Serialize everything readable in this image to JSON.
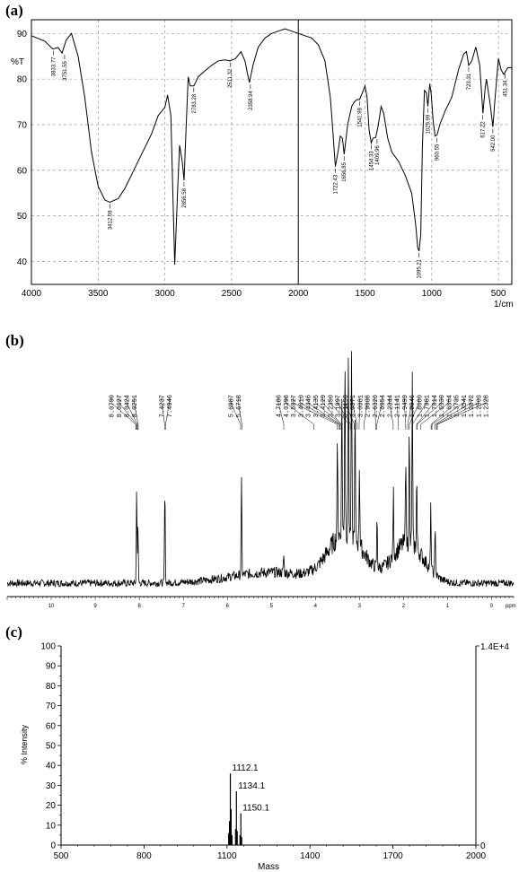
{
  "panels": {
    "a": {
      "label": "(a)"
    },
    "b": {
      "label": "(b)"
    },
    "c": {
      "label": "(c)"
    }
  },
  "chart_data": [
    {
      "type": "line",
      "panel": "a",
      "xlabel": "1/cm",
      "ylabel": "%T",
      "xlim": [
        4000,
        400
      ],
      "ylim": [
        35,
        93
      ],
      "x_ticks": [
        4000,
        3500,
        3000,
        2500,
        2000,
        1500,
        1000,
        500
      ],
      "y_ticks": [
        40,
        50,
        60,
        70,
        80,
        90
      ],
      "grid": true,
      "series": [
        {
          "points": [
            [
              4000,
              89.5
            ],
            [
              3900,
              88.3
            ],
            [
              3840,
              86.6
            ],
            [
              3800,
              86.9
            ],
            [
              3770,
              85.7
            ],
            [
              3740,
              88.5
            ],
            [
              3700,
              90.0
            ],
            [
              3650,
              85.0
            ],
            [
              3600,
              76.0
            ],
            [
              3550,
              64.0
            ],
            [
              3500,
              56.5
            ],
            [
              3450,
              53.5
            ],
            [
              3412,
              53.0
            ],
            [
              3350,
              53.8
            ],
            [
              3300,
              56.0
            ],
            [
              3200,
              62.0
            ],
            [
              3100,
              68.0
            ],
            [
              3050,
              72.0
            ],
            [
              3000,
              73.8
            ],
            [
              2980,
              76.5
            ],
            [
              2955,
              72.0
            ],
            [
              2940,
              55.0
            ],
            [
              2926,
              39.3
            ],
            [
              2905,
              55.0
            ],
            [
              2890,
              65.5
            ],
            [
              2870,
              62.0
            ],
            [
              2856,
              57.8
            ],
            [
              2840,
              70.0
            ],
            [
              2825,
              80.5
            ],
            [
              2810,
              78.5
            ],
            [
              2783,
              78.5
            ],
            [
              2750,
              80.5
            ],
            [
              2700,
              81.8
            ],
            [
              2650,
              83.0
            ],
            [
              2600,
              84.0
            ],
            [
              2550,
              84.2
            ],
            [
              2511,
              84.0
            ],
            [
              2470,
              84.5
            ],
            [
              2430,
              86.0
            ],
            [
              2400,
              84.0
            ],
            [
              2380,
              81.0
            ],
            [
              2366,
              79.2
            ],
            [
              2340,
              83.0
            ],
            [
              2300,
              87.0
            ],
            [
              2250,
              89.0
            ],
            [
              2200,
              90.0
            ],
            [
              2150,
              90.5
            ],
            [
              2100,
              91.0
            ],
            [
              2050,
              90.5
            ],
            [
              2000,
              90.0
            ],
            [
              1950,
              89.5
            ],
            [
              1900,
              89.0
            ],
            [
              1850,
              87.5
            ],
            [
              1800,
              84.0
            ],
            [
              1760,
              76.0
            ],
            [
              1740,
              68.0
            ],
            [
              1722,
              60.8
            ],
            [
              1700,
              64.5
            ],
            [
              1685,
              67.5
            ],
            [
              1670,
              67.0
            ],
            [
              1656,
              63.5
            ],
            [
              1630,
              70.0
            ],
            [
              1600,
              74.0
            ],
            [
              1580,
              75.0
            ],
            [
              1560,
              75.5
            ],
            [
              1541,
              75.5
            ],
            [
              1520,
              77.0
            ],
            [
              1500,
              78.5
            ],
            [
              1485,
              76.0
            ],
            [
              1470,
              69.0
            ],
            [
              1454,
              66.0
            ],
            [
              1440,
              67.0
            ],
            [
              1420,
              67.2
            ],
            [
              1400,
              70.0
            ],
            [
              1380,
              74.0
            ],
            [
              1360,
              72.5
            ],
            [
              1330,
              67.0
            ],
            [
              1300,
              64.0
            ],
            [
              1250,
              62.0
            ],
            [
              1200,
              59.0
            ],
            [
              1150,
              55.0
            ],
            [
              1120,
              48.0
            ],
            [
              1105,
              43.0
            ],
            [
              1095,
              42.3
            ],
            [
              1082,
              46.0
            ],
            [
              1070,
              65.0
            ],
            [
              1055,
              77.5
            ],
            [
              1040,
              77.0
            ],
            [
              1029,
              74.0
            ],
            [
              1015,
              79.0
            ],
            [
              1005,
              77.0
            ],
            [
              990,
              71.0
            ],
            [
              975,
              67.5
            ],
            [
              960,
              67.8
            ],
            [
              940,
              70.0
            ],
            [
              900,
              73.0
            ],
            [
              850,
              76.0
            ],
            [
              800,
              82.0
            ],
            [
              760,
              85.5
            ],
            [
              740,
              86.0
            ],
            [
              723,
              83.0
            ],
            [
              700,
              84.0
            ],
            [
              670,
              87.0
            ],
            [
              640,
              83.0
            ],
            [
              617,
              72.5
            ],
            [
              600,
              78.0
            ],
            [
              590,
              80.0
            ],
            [
              560,
              74.0
            ],
            [
              542,
              69.5
            ],
            [
              525,
              76.0
            ],
            [
              500,
              84.5
            ],
            [
              480,
              82.0
            ],
            [
              460,
              81.0
            ],
            [
              451,
              81.5
            ],
            [
              430,
              82.5
            ],
            [
              400,
              82.5
            ]
          ]
        }
      ],
      "peak_labels": [
        {
          "x": 3833.77,
          "y": 86.6,
          "text": "3833.77"
        },
        {
          "x": 3751.55,
          "y": 85.7,
          "text": "3751.55"
        },
        {
          "x": 3412.08,
          "y": 53.0,
          "text": "3412.08"
        },
        {
          "x": 2856.58,
          "y": 57.8,
          "text": "2856.58"
        },
        {
          "x": 2783.28,
          "y": 78.5,
          "text": "2783.28"
        },
        {
          "x": 2511.32,
          "y": 84.0,
          "text": "2511.32"
        },
        {
          "x": 2358.94,
          "y": 79.2,
          "text": "2358.94"
        },
        {
          "x": 1722.43,
          "y": 60.8,
          "text": "1722.43"
        },
        {
          "x": 1656.85,
          "y": 63.5,
          "text": "1656.85"
        },
        {
          "x": 1541.98,
          "y": 75.5,
          "text": "1541.98"
        },
        {
          "x": 1454.33,
          "y": 66.0,
          "text": "1454.33"
        },
        {
          "x": 1409.96,
          "y": 67.2,
          "text": "1409.96"
        },
        {
          "x": 1095.21,
          "y": 42.3,
          "text": "1095.21"
        },
        {
          "x": 1029.99,
          "y": 74.0,
          "text": "1029.99"
        },
        {
          "x": 960.55,
          "y": 67.5,
          "text": "960.55"
        },
        {
          "x": 723.31,
          "y": 83.0,
          "text": "723.31"
        },
        {
          "x": 617.22,
          "y": 72.5,
          "text": "617.22"
        },
        {
          "x": 542.0,
          "y": 69.5,
          "text": "542.00"
        },
        {
          "x": 451.34,
          "y": 81.5,
          "text": "451.34"
        }
      ],
      "vertical_marker_x": 2000
    },
    {
      "type": "line",
      "panel": "b",
      "xlabel": "ppm",
      "xlim": [
        11,
        -0.5
      ],
      "x_ticks": [
        10,
        9,
        8,
        7,
        6,
        5,
        4,
        3,
        2,
        1,
        0
      ],
      "grid": false,
      "peaks": [
        {
          "ppm": 8.06,
          "h": 105
        },
        {
          "ppm": 8.03,
          "h": 60
        },
        {
          "ppm": 7.42,
          "h": 105
        },
        {
          "ppm": 5.68,
          "h": 105
        },
        {
          "ppm": 4.72,
          "h": 20
        },
        {
          "ppm": 3.5,
          "h": 110
        },
        {
          "ppm": 3.4,
          "h": 150
        },
        {
          "ppm": 3.33,
          "h": 200
        },
        {
          "ppm": 3.25,
          "h": 195
        },
        {
          "ppm": 3.18,
          "h": 205
        },
        {
          "ppm": 3.1,
          "h": 140
        },
        {
          "ppm": 3.0,
          "h": 90
        },
        {
          "ppm": 2.6,
          "h": 55
        },
        {
          "ppm": 2.23,
          "h": 70
        },
        {
          "ppm": 1.95,
          "h": 105
        },
        {
          "ppm": 1.87,
          "h": 120
        },
        {
          "ppm": 1.8,
          "h": 185
        },
        {
          "ppm": 1.7,
          "h": 80
        },
        {
          "ppm": 1.38,
          "h": 70
        },
        {
          "ppm": 1.28,
          "h": 55
        }
      ],
      "shift_labels": [
        {
          "group": 1,
          "values": [
            "8.0790",
            "8.0627",
            "8.0424",
            "8.0251"
          ]
        },
        {
          "group": 2,
          "values": [
            "7.4237",
            "7.4046"
          ]
        },
        {
          "group": 3,
          "values": [
            "5.6987",
            "5.6718"
          ]
        },
        {
          "group": 4,
          "values": [
            "4.7186",
            "4.0398",
            "3.5027",
            "3.4610",
            "3.4446",
            "3.4135",
            "3.4129",
            "3.2350",
            "3.1997",
            "3.1150",
            "3.0571",
            "3.0081",
            "2.9008",
            "2.6320",
            "2.6054",
            "2.2344",
            "2.1141",
            "1.9499",
            "1.9046",
            "1.8680",
            "1.7981",
            "1.7014",
            "1.6930",
            "1.6064",
            "1.3735",
            "1.3541",
            "1.2872",
            "1.2503",
            "1.2328"
          ]
        }
      ]
    },
    {
      "type": "line",
      "panel": "c",
      "xlabel": "Mass",
      "ylabel": "% Intensity",
      "xlim": [
        500,
        2000
      ],
      "ylim": [
        0,
        100
      ],
      "x_ticks": [
        500,
        800,
        1100,
        1400,
        1700,
        2000
      ],
      "y_ticks": [
        0,
        10,
        20,
        30,
        40,
        50,
        60,
        70,
        80,
        90,
        100
      ],
      "right_axis_top_label": "1.4E+4",
      "right_axis_zero_label": "0",
      "peaks": [
        {
          "mass": 1106.0,
          "intensity": 6
        },
        {
          "mass": 1109.0,
          "intensity": 12
        },
        {
          "mass": 1112.1,
          "intensity": 36
        },
        {
          "mass": 1115.0,
          "intensity": 18
        },
        {
          "mass": 1118.0,
          "intensity": 5
        },
        {
          "mass": 1131.0,
          "intensity": 8
        },
        {
          "mass": 1134.1,
          "intensity": 27
        },
        {
          "mass": 1137.0,
          "intensity": 7
        },
        {
          "mass": 1147.0,
          "intensity": 5
        },
        {
          "mass": 1150.1,
          "intensity": 16
        },
        {
          "mass": 1153.0,
          "intensity": 4
        }
      ],
      "peak_labels": [
        {
          "mass": 1112.1,
          "text": "1112.1"
        },
        {
          "mass": 1134.1,
          "text": "1134.1"
        },
        {
          "mass": 1150.1,
          "text": "1150.1"
        }
      ]
    }
  ]
}
